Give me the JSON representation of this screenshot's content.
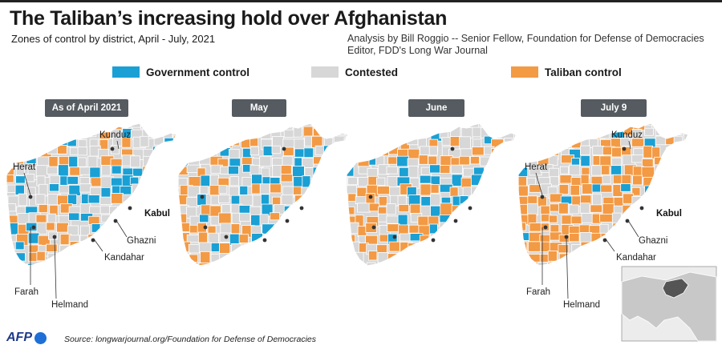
{
  "header": {
    "title": "The Taliban’s increasing hold over Afghanistan",
    "subtitle": "Zones of control by district, April - July, 2021",
    "credit_line1": "Analysis by Bill Roggio -- Senior Fellow, Foundation for Defense of Democracies",
    "credit_line2": "Editor, FDD's Long War Journal"
  },
  "legend": [
    {
      "label": "Government control",
      "color": "#1aa0d4"
    },
    {
      "label": "Contested",
      "color": "#d7d7d7"
    },
    {
      "label": "Taliban control",
      "color": "#f39a45"
    }
  ],
  "panels": [
    {
      "label": "As of April 2021",
      "share": {
        "government": 0.28,
        "contested": 0.47,
        "taliban": 0.25
      }
    },
    {
      "label": "May",
      "share": {
        "government": 0.25,
        "contested": 0.48,
        "taliban": 0.27
      }
    },
    {
      "label": "June",
      "share": {
        "government": 0.22,
        "contested": 0.4,
        "taliban": 0.38
      }
    },
    {
      "label": "July 9",
      "share": {
        "government": 0.13,
        "contested": 0.3,
        "taliban": 0.57
      }
    }
  ],
  "city_labels": {
    "kunduz": "Kunduz",
    "herat": "Herat",
    "kabul": "Kabul",
    "ghazni": "Ghazni",
    "kandahar": "Kandahar",
    "farah": "Farah",
    "helmand": "Helmand"
  },
  "colors": {
    "government": "#1aa0d4",
    "contested": "#d7d7d7",
    "taliban": "#f39a45",
    "border": "#ffffff",
    "city_dot": "#333333",
    "inset_land": "#c8c8c8",
    "inset_highlight": "#555555"
  },
  "footer": {
    "logo": "AFP",
    "source": "Source: longwarjournal.org/Foundation for Defense of Democracies"
  }
}
